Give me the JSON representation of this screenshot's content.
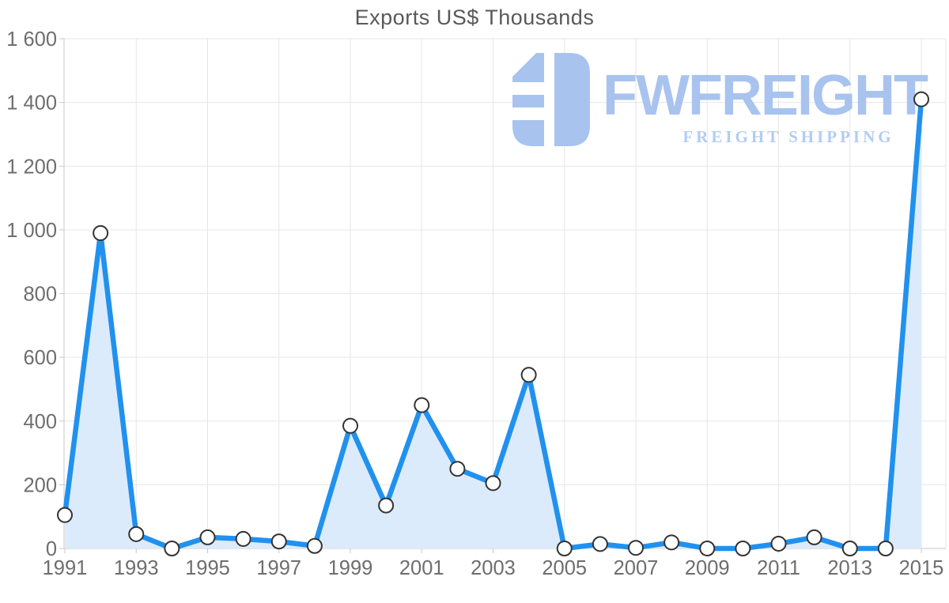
{
  "title": "Exports US$ Thousands",
  "watermark": {
    "brand": "FWFREIGHT",
    "tagline": "FREIGHT SHIPPING",
    "icon": "fwfreight-logo-icon",
    "brand_color": "#a9c3ef",
    "tagline_color": "#b3ccf3"
  },
  "chart_data": {
    "type": "area",
    "title": "Exports US$ Thousands",
    "series_name": "Exports US$ Thousands",
    "x": [
      1991,
      1992,
      1993,
      1994,
      1995,
      1996,
      1997,
      1998,
      1999,
      2000,
      2001,
      2002,
      2003,
      2004,
      2005,
      2006,
      2007,
      2008,
      2009,
      2010,
      2011,
      2012,
      2013,
      2014,
      2015
    ],
    "values": [
      105,
      990,
      45,
      0,
      35,
      30,
      22,
      8,
      385,
      135,
      450,
      250,
      205,
      545,
      0,
      14,
      2,
      19,
      0,
      0,
      15,
      35,
      0,
      0,
      1410
    ],
    "xlabel": "",
    "ylabel": "",
    "ylim": [
      0,
      1600
    ],
    "y_tick_step": 200,
    "y_tick_labels": [
      "0",
      "200",
      "400",
      "600",
      "800",
      "1 000",
      "1 200",
      "1 400",
      "1 600"
    ],
    "x_tick_years": [
      1991,
      1993,
      1995,
      1997,
      1999,
      2001,
      2003,
      2005,
      2007,
      2009,
      2011,
      2013,
      2015
    ],
    "x_tick_labels": [
      "1991",
      "1993",
      "1995",
      "1997",
      "1999",
      "2001",
      "2003",
      "2005",
      "2007",
      "2009",
      "2011",
      "2013",
      "2015"
    ],
    "grid": true,
    "legend": false,
    "marker": "circle",
    "colors": {
      "line": "#2191ee",
      "fill": "#dcebfb",
      "marker_fill": "#ffffff",
      "marker_stroke": "#333333",
      "grid": "#e6e6e6",
      "axis": "#c8c8c8",
      "label": "#6e6e6e",
      "title": "#595959"
    }
  }
}
